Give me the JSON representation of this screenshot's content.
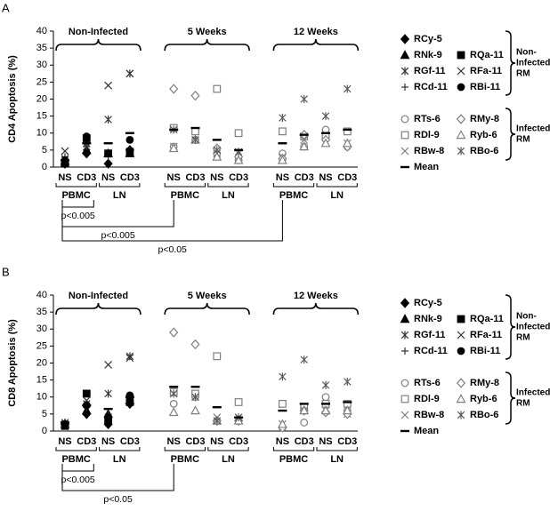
{
  "chart_data": [
    {
      "type": "dot",
      "panel": "A",
      "y_label": "CD4 Apoptosis (%)",
      "ylim": [
        0,
        40
      ],
      "yticks": [
        0,
        5,
        10,
        15,
        20,
        25,
        30,
        35,
        40
      ],
      "categories": [
        "NS",
        "CD3",
        "NS",
        "CD3",
        "NS",
        "CD3",
        "NS",
        "CD3",
        "NS",
        "CD3",
        "NS",
        "CD3"
      ],
      "groups": [
        {
          "name": "Non-Infected",
          "tissues": [
            "PBMC",
            "LN"
          ]
        },
        {
          "name": "5 Weeks",
          "tissues": [
            "PBMC",
            "LN"
          ]
        },
        {
          "name": "12 Weeks",
          "tissues": [
            "PBMC",
            "LN"
          ]
        }
      ],
      "series": [
        {
          "name": "RCy-5",
          "marker": "diamond",
          "filled": true,
          "color": "#000000",
          "values": [
            1,
            4,
            1,
            5,
            null,
            null,
            null,
            null,
            null,
            null,
            null,
            null
          ]
        },
        {
          "name": "RNk-9",
          "marker": "triangle",
          "filled": true,
          "color": "#000000",
          "values": [
            1.5,
            5,
            4,
            4,
            null,
            null,
            null,
            null,
            null,
            null,
            null,
            null
          ]
        },
        {
          "name": "RGf-11",
          "marker": "asterisk",
          "filled": false,
          "color": "#333333",
          "values": [
            2.5,
            7,
            14,
            27.5,
            null,
            null,
            null,
            null,
            null,
            null,
            null,
            null
          ]
        },
        {
          "name": "RCd-11",
          "marker": "plus",
          "filled": false,
          "color": "#333333",
          "values": [
            3,
            6,
            3,
            5,
            null,
            null,
            null,
            null,
            null,
            null,
            null,
            null
          ]
        },
        {
          "name": "RQa-11",
          "marker": "square",
          "filled": true,
          "color": "#000000",
          "values": [
            1,
            8.5,
            4,
            4.5,
            null,
            null,
            null,
            null,
            null,
            null,
            null,
            null
          ]
        },
        {
          "name": "RFa-11",
          "marker": "x",
          "filled": false,
          "color": "#333333",
          "values": [
            4.7,
            6,
            24,
            27.5,
            null,
            null,
            null,
            null,
            null,
            null,
            null,
            null
          ]
        },
        {
          "name": "RBi-11",
          "marker": "circle",
          "filled": true,
          "color": "#000000",
          "values": [
            2,
            9,
            4,
            8,
            null,
            null,
            null,
            null,
            null,
            null,
            null,
            null
          ]
        },
        {
          "name": "RTs-6",
          "marker": "circle",
          "filled": false,
          "color": "#7f7f7f",
          "values": [
            null,
            null,
            null,
            null,
            6,
            8,
            4,
            2,
            4,
            6,
            11,
            6
          ]
        },
        {
          "name": "RDl-9",
          "marker": "square",
          "filled": false,
          "color": "#7f7f7f",
          "values": [
            null,
            null,
            null,
            null,
            11.5,
            10.5,
            23,
            10,
            10.5,
            9,
            9,
            10.5
          ]
        },
        {
          "name": "RBw-8",
          "marker": "x",
          "filled": false,
          "color": "#7f7f7f",
          "values": [
            null,
            null,
            null,
            null,
            6,
            8,
            4,
            4,
            3,
            8,
            7,
            7
          ]
        },
        {
          "name": "RMy-8",
          "marker": "diamond",
          "filled": false,
          "color": "#7f7f7f",
          "values": [
            null,
            null,
            null,
            null,
            23,
            21,
            5.5,
            3,
            2.5,
            9.5,
            8,
            6
          ]
        },
        {
          "name": "Ryb-6",
          "marker": "triangle",
          "filled": false,
          "color": "#7f7f7f",
          "values": [
            null,
            null,
            null,
            null,
            5.5,
            8,
            3,
            2,
            2,
            6,
            7,
            7
          ]
        },
        {
          "name": "RBo-6",
          "marker": "asterisk",
          "filled": false,
          "color": "#595959",
          "values": [
            null,
            null,
            null,
            null,
            11,
            8,
            5,
            4.5,
            14.5,
            20,
            15,
            23
          ]
        },
        {
          "name": "Mean",
          "marker": "dash",
          "filled": true,
          "color": "#000000",
          "values": [
            2,
            7,
            7,
            10,
            11,
            11.5,
            8,
            5,
            7,
            9.5,
            10,
            11
          ]
        }
      ],
      "legend_groups": [
        {
          "label": [
            "Non-",
            "Infected",
            "RM"
          ]
        },
        {
          "label": [
            "Infected",
            "RM"
          ]
        }
      ],
      "annotations": [
        {
          "text": "p<0.005",
          "from": 0,
          "to": 1
        },
        {
          "text": "p<0.005",
          "from": 0,
          "to": 4
        },
        {
          "text": "p<0.05",
          "from": 0,
          "to": 8
        }
      ]
    },
    {
      "type": "dot",
      "panel": "B",
      "y_label": "CD8 Apoptosis (%)",
      "ylim": [
        0,
        40
      ],
      "yticks": [
        0,
        5,
        10,
        15,
        20,
        25,
        30,
        35,
        40
      ],
      "categories": [
        "NS",
        "CD3",
        "NS",
        "CD3",
        "NS",
        "CD3",
        "NS",
        "CD3",
        "NS",
        "CD3",
        "NS",
        "CD3"
      ],
      "groups": [
        {
          "name": "Non-Infected",
          "tissues": [
            "PBMC",
            "LN"
          ]
        },
        {
          "name": "5 Weeks",
          "tissues": [
            "PBMC",
            "LN"
          ]
        },
        {
          "name": "12 Weeks",
          "tissues": [
            "PBMC",
            "LN"
          ]
        }
      ],
      "series": [
        {
          "name": "RCy-5",
          "marker": "diamond",
          "filled": true,
          "color": "#000000",
          "values": [
            2,
            5,
            2,
            8,
            null,
            null,
            null,
            null,
            null,
            null,
            null,
            null
          ]
        },
        {
          "name": "RNk-9",
          "marker": "triangle",
          "filled": true,
          "color": "#000000",
          "values": [
            2,
            6,
            5,
            9,
            null,
            null,
            null,
            null,
            null,
            null,
            null,
            null
          ]
        },
        {
          "name": "RGf-11",
          "marker": "asterisk",
          "filled": false,
          "color": "#333333",
          "values": [
            2.5,
            8,
            11,
            22,
            null,
            null,
            null,
            null,
            null,
            null,
            null,
            null
          ]
        },
        {
          "name": "RCd-11",
          "marker": "plus",
          "filled": false,
          "color": "#333333",
          "values": [
            2,
            7,
            5,
            10,
            null,
            null,
            null,
            null,
            null,
            null,
            null,
            null
          ]
        },
        {
          "name": "RQa-11",
          "marker": "square",
          "filled": true,
          "color": "#000000",
          "values": [
            1.5,
            11,
            3,
            8.5,
            null,
            null,
            null,
            null,
            null,
            null,
            null,
            null
          ]
        },
        {
          "name": "RFa-11",
          "marker": "x",
          "filled": false,
          "color": "#333333",
          "values": [
            2,
            9,
            19.5,
            21.5,
            null,
            null,
            null,
            null,
            null,
            null,
            null,
            null
          ]
        },
        {
          "name": "RBi-11",
          "marker": "circle",
          "filled": true,
          "color": "#000000",
          "values": [
            2,
            7.5,
            4,
            10.5,
            null,
            null,
            null,
            null,
            null,
            null,
            null,
            null
          ]
        },
        {
          "name": "RTs-6",
          "marker": "circle",
          "filled": false,
          "color": "#7f7f7f",
          "values": [
            null,
            null,
            null,
            null,
            8,
            10,
            3,
            3,
            1,
            2.5,
            10,
            6
          ]
        },
        {
          "name": "RDl-9",
          "marker": "square",
          "filled": false,
          "color": "#7f7f7f",
          "values": [
            null,
            null,
            null,
            null,
            11.5,
            11,
            22,
            8.5,
            8,
            7,
            8,
            8
          ]
        },
        {
          "name": "RBw-8",
          "marker": "x",
          "filled": false,
          "color": "#7f7f7f",
          "values": [
            null,
            null,
            null,
            null,
            11,
            10,
            4,
            4,
            2,
            6,
            6,
            5
          ]
        },
        {
          "name": "RMy-8",
          "marker": "diamond",
          "filled": false,
          "color": "#7f7f7f",
          "values": [
            null,
            null,
            null,
            null,
            29,
            25.5,
            3,
            3,
            1,
            6,
            5.5,
            5
          ]
        },
        {
          "name": "Ryb-6",
          "marker": "triangle",
          "filled": false,
          "color": "#7f7f7f",
          "values": [
            null,
            null,
            null,
            null,
            5.5,
            6,
            3,
            3,
            2,
            6,
            6,
            6
          ]
        },
        {
          "name": "RBo-6",
          "marker": "asterisk",
          "filled": false,
          "color": "#595959",
          "values": [
            null,
            null,
            null,
            null,
            11,
            10,
            3,
            4,
            16,
            21,
            13.5,
            14.5
          ]
        },
        {
          "name": "Mean",
          "marker": "dash",
          "filled": true,
          "color": "#000000",
          "values": [
            2.5,
            7.5,
            6.5,
            10,
            13,
            13,
            7,
            4,
            6,
            8,
            8,
            8.5
          ]
        }
      ],
      "legend_groups": [
        {
          "label": [
            "Non-",
            "Infected",
            "RM"
          ]
        },
        {
          "label": [
            "Infected",
            "RM"
          ]
        }
      ],
      "annotations": [
        {
          "text": "p<0.005",
          "from": 0,
          "to": 1
        },
        {
          "text": "p<0.05",
          "from": 0,
          "to": 4
        }
      ]
    }
  ]
}
